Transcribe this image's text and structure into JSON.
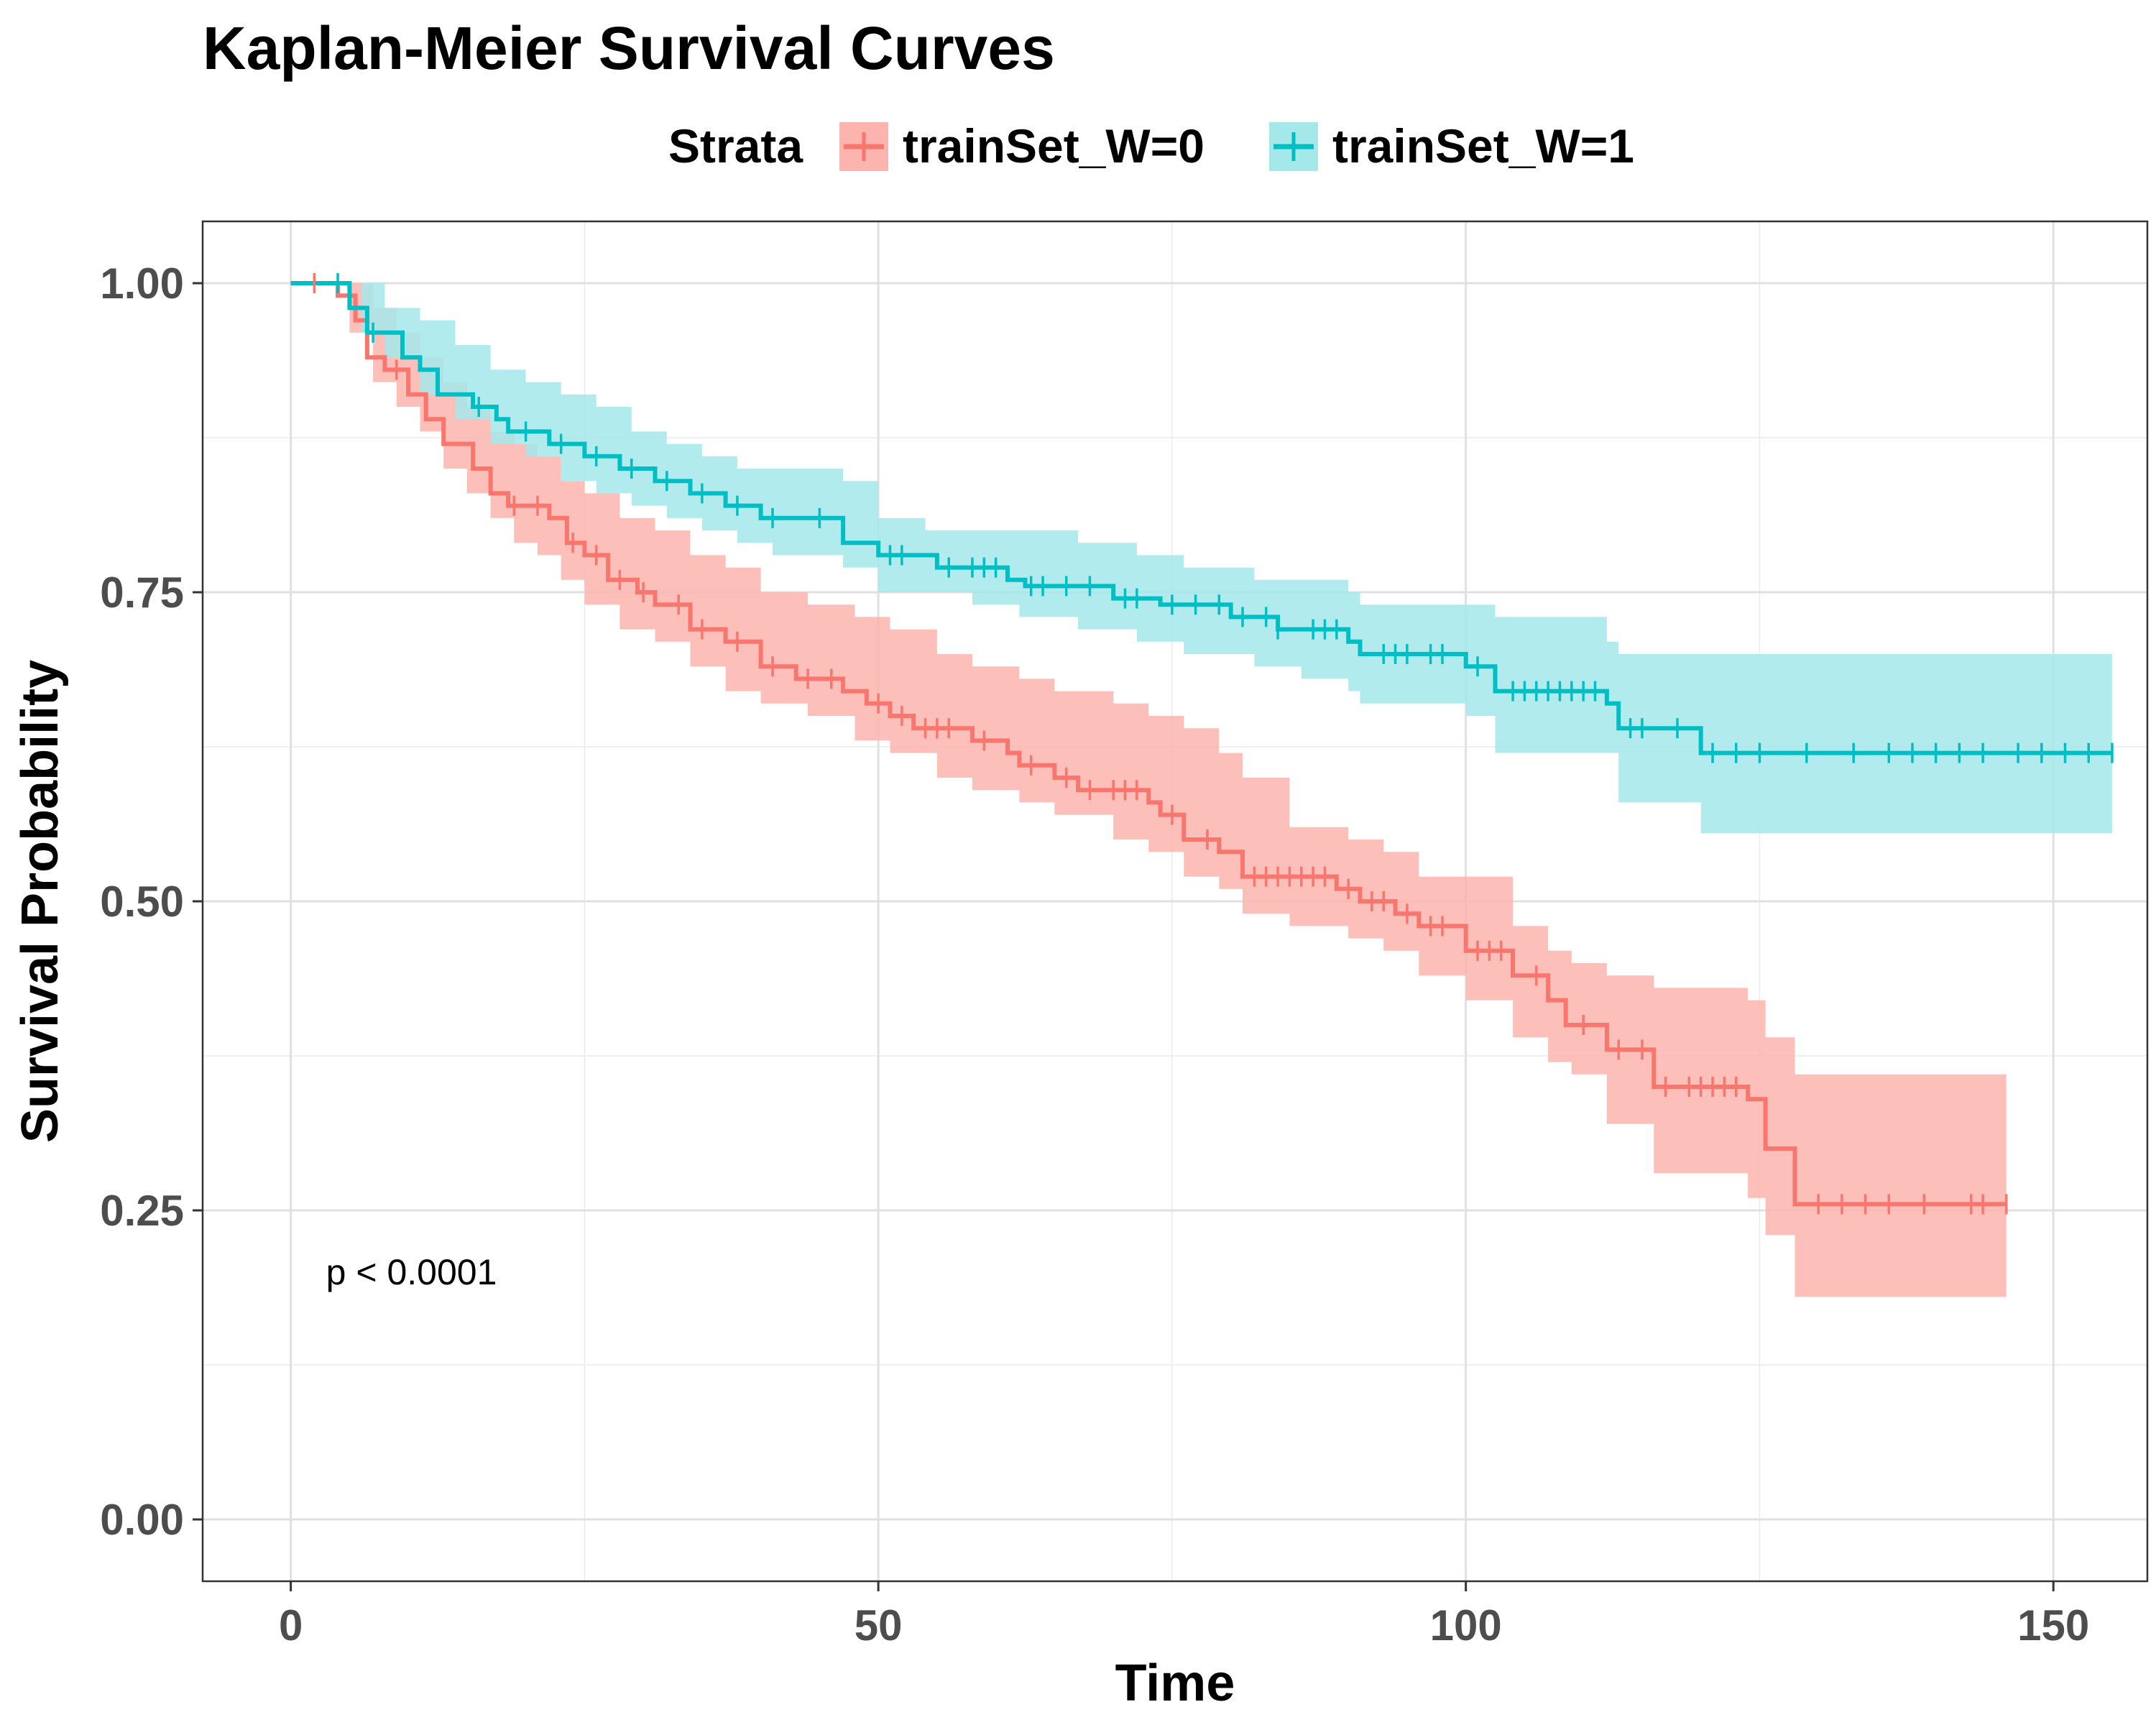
{
  "chart_data": {
    "type": "line",
    "title": "Kaplan-Meier Survival Curves",
    "xlabel": "Time",
    "ylabel": "Survival Probability",
    "xlim": [
      -7.5,
      158
    ],
    "ylim": [
      -0.05,
      1.05
    ],
    "x_ticks": [
      0,
      50,
      100,
      150
    ],
    "x_tick_labels": [
      "0",
      "50",
      "100",
      "150"
    ],
    "y_ticks": [
      0,
      0.25,
      0.5,
      0.75,
      1.0
    ],
    "y_tick_labels": [
      "0.00",
      "0.25",
      "0.50",
      "0.75",
      "1.00"
    ],
    "grid": true,
    "legend": {
      "title": "Strata",
      "position": "top"
    },
    "annotation": {
      "text": "p < 0.0001",
      "x": 3,
      "y": 0.19
    },
    "series": [
      {
        "name": "trainSet_W=0",
        "color": "#F8766D",
        "fill_color": "#FBB4AE",
        "steps": [
          [
            0,
            1.0
          ],
          [
            4,
            0.99
          ],
          [
            5.5,
            0.97
          ],
          [
            6.5,
            0.94
          ],
          [
            8,
            0.93
          ],
          [
            10,
            0.91
          ],
          [
            11.5,
            0.89
          ],
          [
            13,
            0.87
          ],
          [
            15.5,
            0.85
          ],
          [
            17,
            0.83
          ],
          [
            18.5,
            0.82
          ],
          [
            22,
            0.81
          ],
          [
            23.5,
            0.79
          ],
          [
            25,
            0.78
          ],
          [
            27,
            0.76
          ],
          [
            29.5,
            0.75
          ],
          [
            31,
            0.74
          ],
          [
            34,
            0.72
          ],
          [
            37,
            0.71
          ],
          [
            40,
            0.69
          ],
          [
            43,
            0.68
          ],
          [
            47,
            0.67
          ],
          [
            49,
            0.66
          ],
          [
            51,
            0.65
          ],
          [
            53,
            0.64
          ],
          [
            58,
            0.63
          ],
          [
            61,
            0.62
          ],
          [
            62,
            0.61
          ],
          [
            65,
            0.6
          ],
          [
            67,
            0.59
          ],
          [
            73,
            0.58
          ],
          [
            74,
            0.57
          ],
          [
            76,
            0.55
          ],
          [
            79,
            0.54
          ],
          [
            81,
            0.52
          ],
          [
            89,
            0.51
          ],
          [
            91,
            0.5
          ],
          [
            94,
            0.49
          ],
          [
            96,
            0.48
          ],
          [
            100,
            0.46
          ],
          [
            104,
            0.44
          ],
          [
            107,
            0.42
          ],
          [
            108.5,
            0.4
          ],
          [
            112,
            0.38
          ],
          [
            116,
            0.35
          ],
          [
            124,
            0.34
          ],
          [
            125.5,
            0.3
          ],
          [
            128,
            0.255
          ],
          [
            146,
            0.255
          ]
        ],
        "ci_upper": [
          [
            0,
            1.0
          ],
          [
            5,
            1.0
          ],
          [
            7,
            0.98
          ],
          [
            9,
            0.96
          ],
          [
            11,
            0.94
          ],
          [
            13,
            0.92
          ],
          [
            15,
            0.9
          ],
          [
            17,
            0.88
          ],
          [
            19,
            0.87
          ],
          [
            21,
            0.86
          ],
          [
            23,
            0.84
          ],
          [
            25,
            0.83
          ],
          [
            28,
            0.81
          ],
          [
            31,
            0.8
          ],
          [
            34,
            0.78
          ],
          [
            37,
            0.77
          ],
          [
            40,
            0.75
          ],
          [
            44,
            0.74
          ],
          [
            48,
            0.73
          ],
          [
            51,
            0.72
          ],
          [
            55,
            0.7
          ],
          [
            58,
            0.69
          ],
          [
            62,
            0.68
          ],
          [
            65,
            0.67
          ],
          [
            70,
            0.66
          ],
          [
            73,
            0.65
          ],
          [
            76,
            0.64
          ],
          [
            79,
            0.62
          ],
          [
            81,
            0.6
          ],
          [
            85,
            0.56
          ],
          [
            90,
            0.55
          ],
          [
            93,
            0.54
          ],
          [
            96,
            0.52
          ],
          [
            100,
            0.52
          ],
          [
            104,
            0.48
          ],
          [
            107,
            0.46
          ],
          [
            109,
            0.45
          ],
          [
            112,
            0.44
          ],
          [
            116,
            0.43
          ],
          [
            124,
            0.42
          ],
          [
            125.5,
            0.39
          ],
          [
            128,
            0.36
          ],
          [
            146,
            0.36
          ]
        ],
        "ci_lower": [
          [
            0,
            1.0
          ],
          [
            5,
            0.96
          ],
          [
            7,
            0.92
          ],
          [
            9,
            0.9
          ],
          [
            11,
            0.88
          ],
          [
            13,
            0.85
          ],
          [
            15,
            0.83
          ],
          [
            17,
            0.81
          ],
          [
            19,
            0.79
          ],
          [
            21,
            0.78
          ],
          [
            23,
            0.76
          ],
          [
            25,
            0.74
          ],
          [
            28,
            0.72
          ],
          [
            31,
            0.71
          ],
          [
            34,
            0.69
          ],
          [
            37,
            0.67
          ],
          [
            40,
            0.66
          ],
          [
            44,
            0.65
          ],
          [
            48,
            0.63
          ],
          [
            51,
            0.62
          ],
          [
            55,
            0.6
          ],
          [
            58,
            0.59
          ],
          [
            62,
            0.58
          ],
          [
            65,
            0.57
          ],
          [
            70,
            0.55
          ],
          [
            73,
            0.54
          ],
          [
            76,
            0.52
          ],
          [
            79,
            0.51
          ],
          [
            81,
            0.49
          ],
          [
            85,
            0.48
          ],
          [
            90,
            0.47
          ],
          [
            93,
            0.46
          ],
          [
            96,
            0.44
          ],
          [
            100,
            0.42
          ],
          [
            104,
            0.39
          ],
          [
            107,
            0.37
          ],
          [
            109,
            0.36
          ],
          [
            112,
            0.32
          ],
          [
            116,
            0.28
          ],
          [
            124,
            0.26
          ],
          [
            125.5,
            0.23
          ],
          [
            128,
            0.18
          ],
          [
            146,
            0.18
          ]
        ],
        "censor_times": [
          2,
          9,
          19,
          21,
          24,
          26,
          28,
          30,
          33,
          35,
          38,
          41,
          44,
          46,
          50,
          52,
          54,
          55,
          56,
          59,
          63,
          66,
          68,
          70,
          71,
          72,
          75,
          78,
          82,
          83,
          84,
          85,
          86,
          87,
          88,
          90,
          92,
          93,
          95,
          97,
          98,
          101,
          102,
          103,
          106,
          110,
          113,
          115,
          117,
          119,
          120,
          121,
          122,
          123,
          130,
          132,
          134,
          136,
          139,
          143,
          144,
          146
        ]
      },
      {
        "name": "trainSet_W=1",
        "color": "#00BFC4",
        "fill_color": "#A5E8EA",
        "steps": [
          [
            0,
            1.0
          ],
          [
            5,
            0.98
          ],
          [
            6.5,
            0.96
          ],
          [
            9.5,
            0.94
          ],
          [
            11,
            0.93
          ],
          [
            12.5,
            0.91
          ],
          [
            15.5,
            0.9
          ],
          [
            17.5,
            0.89
          ],
          [
            18.5,
            0.88
          ],
          [
            22,
            0.87
          ],
          [
            25,
            0.86
          ],
          [
            28,
            0.85
          ],
          [
            31,
            0.84
          ],
          [
            34,
            0.83
          ],
          [
            37,
            0.82
          ],
          [
            40,
            0.81
          ],
          [
            44,
            0.81
          ],
          [
            47,
            0.79
          ],
          [
            50,
            0.78
          ],
          [
            54,
            0.78
          ],
          [
            55,
            0.77
          ],
          [
            61,
            0.76
          ],
          [
            62.5,
            0.755
          ],
          [
            70,
            0.745
          ],
          [
            74,
            0.74
          ],
          [
            80,
            0.73
          ],
          [
            84,
            0.72
          ],
          [
            90,
            0.71
          ],
          [
            91,
            0.7
          ],
          [
            100,
            0.69
          ],
          [
            102.5,
            0.67
          ],
          [
            112,
            0.66
          ],
          [
            113,
            0.64
          ],
          [
            120,
            0.62
          ],
          [
            155,
            0.62
          ]
        ],
        "ci_upper": [
          [
            0,
            1.0
          ],
          [
            6,
            1.0
          ],
          [
            8,
            0.98
          ],
          [
            11,
            0.97
          ],
          [
            14,
            0.95
          ],
          [
            17,
            0.93
          ],
          [
            20,
            0.92
          ],
          [
            23,
            0.91
          ],
          [
            26,
            0.9
          ],
          [
            29,
            0.88
          ],
          [
            32,
            0.87
          ],
          [
            35,
            0.86
          ],
          [
            38,
            0.85
          ],
          [
            41,
            0.85
          ],
          [
            47,
            0.84
          ],
          [
            50,
            0.81
          ],
          [
            54,
            0.8
          ],
          [
            58,
            0.8
          ],
          [
            62,
            0.8
          ],
          [
            67,
            0.79
          ],
          [
            72,
            0.78
          ],
          [
            76,
            0.77
          ],
          [
            82,
            0.76
          ],
          [
            86,
            0.76
          ],
          [
            90,
            0.75
          ],
          [
            91,
            0.74
          ],
          [
            100,
            0.74
          ],
          [
            102.5,
            0.73
          ],
          [
            112,
            0.71
          ],
          [
            113,
            0.7
          ],
          [
            120,
            0.7
          ],
          [
            155,
            0.7
          ]
        ],
        "ci_lower": [
          [
            0,
            1.0
          ],
          [
            6,
            0.96
          ],
          [
            8,
            0.94
          ],
          [
            11,
            0.91
          ],
          [
            14,
            0.89
          ],
          [
            17,
            0.87
          ],
          [
            20,
            0.86
          ],
          [
            23,
            0.84
          ],
          [
            26,
            0.83
          ],
          [
            29,
            0.82
          ],
          [
            32,
            0.81
          ],
          [
            35,
            0.8
          ],
          [
            38,
            0.79
          ],
          [
            41,
            0.78
          ],
          [
            47,
            0.77
          ],
          [
            50,
            0.75
          ],
          [
            54,
            0.75
          ],
          [
            58,
            0.74
          ],
          [
            62,
            0.73
          ],
          [
            67,
            0.72
          ],
          [
            72,
            0.71
          ],
          [
            76,
            0.7
          ],
          [
            82,
            0.69
          ],
          [
            86,
            0.68
          ],
          [
            90,
            0.67
          ],
          [
            91,
            0.66
          ],
          [
            100,
            0.65
          ],
          [
            102.5,
            0.62
          ],
          [
            112,
            0.62
          ],
          [
            113,
            0.58
          ],
          [
            120,
            0.555
          ],
          [
            155,
            0.555
          ]
        ],
        "censor_times": [
          4,
          7,
          16,
          20,
          23,
          26,
          29,
          32,
          35,
          38,
          41,
          45,
          51,
          52,
          56,
          58,
          59,
          60,
          63,
          64,
          66,
          68,
          71,
          72,
          75,
          77,
          79,
          81,
          83,
          84,
          87,
          88,
          89,
          93,
          94,
          95,
          97,
          98,
          101,
          104,
          105,
          106,
          107,
          108,
          109,
          110,
          111,
          114,
          115,
          118,
          121,
          123,
          125,
          129,
          133,
          136,
          138,
          140,
          142,
          144,
          147,
          149,
          151,
          153,
          155
        ]
      }
    ]
  }
}
